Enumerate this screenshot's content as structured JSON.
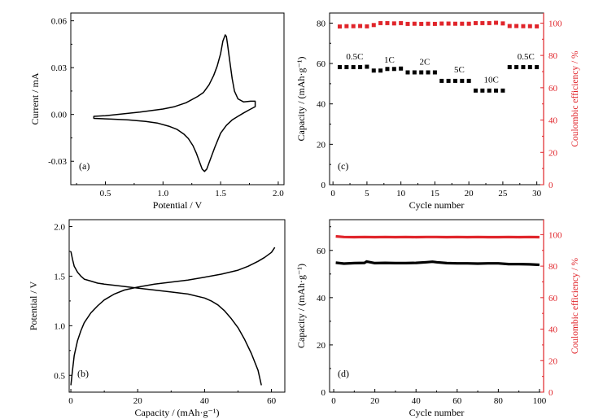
{
  "colors": {
    "axis": "#000000",
    "accent": "#e0242a",
    "black": "#000000"
  },
  "chart_data": [
    {
      "panel": "a",
      "type": "line",
      "panel_label": "(a)",
      "xlabel": "Potential / V",
      "ylabel": "Current / mA",
      "xlim": [
        0.2,
        2.05
      ],
      "ylim": [
        -0.045,
        0.065
      ],
      "xticks": [
        0.5,
        1.0,
        1.5,
        2.0
      ],
      "xtick_labels": [
        "0.5",
        "1.0",
        "1.5",
        "2.0"
      ],
      "yticks": [
        -0.03,
        0.0,
        0.03,
        0.06
      ],
      "ytick_labels": [
        "-0.03",
        "0.00",
        "0.03",
        "0.06"
      ],
      "series": [
        {
          "color": "#000000",
          "x": [
            0.4,
            0.55,
            0.7,
            0.85,
            0.95,
            1.05,
            1.12,
            1.18,
            1.22,
            1.26,
            1.29,
            1.32,
            1.34,
            1.36,
            1.38,
            1.4,
            1.45,
            1.5,
            1.55,
            1.6,
            1.65,
            1.7,
            1.75,
            1.8,
            1.8,
            1.76,
            1.7,
            1.65,
            1.62,
            1.6,
            1.58,
            1.56,
            1.55,
            1.54,
            1.52,
            1.5,
            1.47,
            1.44,
            1.4,
            1.35,
            1.3,
            1.2,
            1.1,
            1.0,
            0.9,
            0.8,
            0.7,
            0.6,
            0.5,
            0.4
          ],
          "y": [
            -0.0025,
            -0.003,
            -0.0035,
            -0.0045,
            -0.0055,
            -0.0075,
            -0.0095,
            -0.0125,
            -0.0155,
            -0.02,
            -0.025,
            -0.031,
            -0.035,
            -0.0365,
            -0.035,
            -0.031,
            -0.021,
            -0.012,
            -0.007,
            -0.0035,
            -0.0012,
            0.001,
            0.003,
            0.005,
            0.0085,
            0.0085,
            0.008,
            0.01,
            0.015,
            0.023,
            0.034,
            0.045,
            0.05,
            0.051,
            0.047,
            0.039,
            0.031,
            0.025,
            0.019,
            0.014,
            0.0115,
            0.0075,
            0.005,
            0.0035,
            0.0025,
            0.0015,
            0.0007,
            0.0,
            -0.0008,
            -0.0012
          ]
        }
      ]
    },
    {
      "panel": "b",
      "type": "line",
      "panel_label": "(b)",
      "xlabel": "Capacity / (mAh·g⁻¹)",
      "ylabel": "Potential / V",
      "xlim": [
        -0.5,
        64
      ],
      "ylim": [
        0.33,
        2.07
      ],
      "xticks": [
        0,
        20,
        40,
        60
      ],
      "xtick_labels": [
        "0",
        "20",
        "40",
        "60"
      ],
      "yticks": [
        0.5,
        1.0,
        1.5,
        2.0
      ],
      "ytick_labels": [
        "0.5",
        "1.0",
        "1.5",
        "2.0"
      ],
      "series": [
        {
          "color": "#000000",
          "x": [
            0,
            0.5,
            1,
            2,
            3,
            4,
            6,
            8,
            10,
            15,
            20,
            25,
            30,
            35,
            40,
            42,
            44,
            46,
            48,
            50,
            52,
            54,
            56,
            57
          ],
          "y": [
            1.75,
            1.67,
            1.6,
            1.54,
            1.5,
            1.47,
            1.45,
            1.43,
            1.42,
            1.4,
            1.38,
            1.36,
            1.34,
            1.32,
            1.28,
            1.25,
            1.21,
            1.15,
            1.07,
            0.98,
            0.86,
            0.72,
            0.55,
            0.4
          ]
        },
        {
          "color": "#000000",
          "x": [
            0,
            0.5,
            1,
            2,
            3,
            4,
            6,
            8,
            10,
            13,
            16,
            20,
            25,
            30,
            35,
            40,
            45,
            50,
            53,
            56,
            58,
            60,
            61
          ],
          "y": [
            0.4,
            0.55,
            0.7,
            0.85,
            0.95,
            1.03,
            1.13,
            1.2,
            1.26,
            1.32,
            1.36,
            1.39,
            1.42,
            1.44,
            1.46,
            1.49,
            1.52,
            1.56,
            1.6,
            1.65,
            1.69,
            1.74,
            1.79
          ]
        }
      ]
    },
    {
      "panel": "c",
      "type": "scatter",
      "panel_label": "(c)",
      "xlabel": "Cycle number",
      "ylabel": "Capacity / (mAh·g⁻¹)",
      "y2label": "Coulombic efficiency / %",
      "xlim": [
        -0.5,
        31
      ],
      "ylim": [
        0,
        85
      ],
      "y2lim": [
        0,
        106.25
      ],
      "xticks": [
        0,
        5,
        10,
        15,
        20,
        25,
        30
      ],
      "xtick_labels": [
        "0",
        "5",
        "10",
        "15",
        "20",
        "25",
        "30"
      ],
      "yticks": [
        0,
        20,
        40,
        60,
        80
      ],
      "ytick_labels": [
        "0",
        "20",
        "40",
        "60",
        "80"
      ],
      "y2ticks": [
        0,
        20,
        40,
        60,
        80,
        100
      ],
      "y2tick_labels": [
        "0",
        "20",
        "40",
        "60",
        "80",
        "100"
      ],
      "x": [
        1,
        2,
        3,
        4,
        5,
        6,
        7,
        8,
        9,
        10,
        11,
        12,
        13,
        14,
        15,
        16,
        17,
        18,
        19,
        20,
        21,
        22,
        23,
        24,
        25,
        26,
        27,
        28,
        29,
        30
      ],
      "series": [
        {
          "name": "Capacity",
          "axis": "left",
          "color": "#000000",
          "values": [
            58.2,
            58.2,
            58.2,
            58.2,
            58.4,
            56.5,
            56.5,
            57.3,
            57.3,
            57.5,
            55.6,
            55.6,
            55.6,
            55.6,
            55.6,
            51.4,
            51.4,
            51.4,
            51.4,
            51.4,
            46.6,
            46.6,
            46.6,
            46.6,
            46.6,
            58.2,
            58.2,
            58.2,
            58.2,
            58.2
          ]
        },
        {
          "name": "Coulombic efficiency",
          "axis": "right",
          "color": "#e0242a",
          "values": [
            97.9,
            98.1,
            98.1,
            98.2,
            98.0,
            98.8,
            100.0,
            100.0,
            99.8,
            100.0,
            99.5,
            99.6,
            99.5,
            99.6,
            99.5,
            99.7,
            99.7,
            99.6,
            99.6,
            99.6,
            100.0,
            100.0,
            100.0,
            100.2,
            99.8,
            98.2,
            98.2,
            98.1,
            98.1,
            98.0
          ]
        }
      ],
      "annotations": [
        {
          "text": "0.5C",
          "x": 3.2,
          "y": 62
        },
        {
          "text": "1C",
          "x": 8.3,
          "y": 60.5
        },
        {
          "text": "2C",
          "x": 13.5,
          "y": 59.5
        },
        {
          "text": "5C",
          "x": 18.6,
          "y": 55.5
        },
        {
          "text": "10C",
          "x": 23.3,
          "y": 50.5
        },
        {
          "text": "0.5C",
          "x": 28.4,
          "y": 62
        }
      ]
    },
    {
      "panel": "d",
      "type": "line",
      "panel_label": "(d)",
      "xlabel": "Cycle number",
      "ylabel": "Capacity / (mAh·g⁻¹)",
      "y2label": "Coulombic efficiency / %",
      "xlim": [
        -2,
        102
      ],
      "ylim": [
        0,
        73
      ],
      "y2lim": [
        0,
        109.5
      ],
      "xticks": [
        0,
        20,
        40,
        60,
        80,
        100
      ],
      "xtick_labels": [
        "0",
        "20",
        "40",
        "60",
        "80",
        "100"
      ],
      "yticks": [
        0,
        20,
        40,
        60
      ],
      "ytick_labels": [
        "0",
        "20",
        "40",
        "60"
      ],
      "y2ticks": [
        0,
        20,
        40,
        60,
        80,
        100
      ],
      "y2tick_labels": [
        "0",
        "20",
        "40",
        "60",
        "80",
        "100"
      ],
      "series": [
        {
          "name": "Capacity",
          "axis": "left",
          "color": "#000000",
          "x": [
            1,
            5,
            10,
            15,
            16,
            20,
            25,
            30,
            35,
            40,
            45,
            48,
            50,
            55,
            60,
            65,
            70,
            75,
            80,
            85,
            90,
            95,
            100
          ],
          "values": [
            54.8,
            54.4,
            54.6,
            54.7,
            55.3,
            54.6,
            54.7,
            54.6,
            54.6,
            54.7,
            55.0,
            55.2,
            55.0,
            54.6,
            54.5,
            54.5,
            54.4,
            54.5,
            54.5,
            54.2,
            54.2,
            54.1,
            53.9
          ]
        },
        {
          "name": "Coulombic efficiency",
          "axis": "right",
          "color": "#e0242a",
          "x": [
            1,
            5,
            10,
            15,
            20,
            25,
            30,
            35,
            40,
            45,
            50,
            55,
            60,
            65,
            70,
            75,
            80,
            85,
            90,
            95,
            100
          ],
          "values": [
            98.9,
            98.5,
            98.4,
            98.5,
            98.4,
            98.5,
            98.4,
            98.5,
            98.4,
            98.5,
            98.5,
            98.4,
            98.5,
            98.4,
            98.5,
            98.4,
            98.4,
            98.5,
            98.4,
            98.5,
            98.4
          ]
        }
      ]
    }
  ]
}
